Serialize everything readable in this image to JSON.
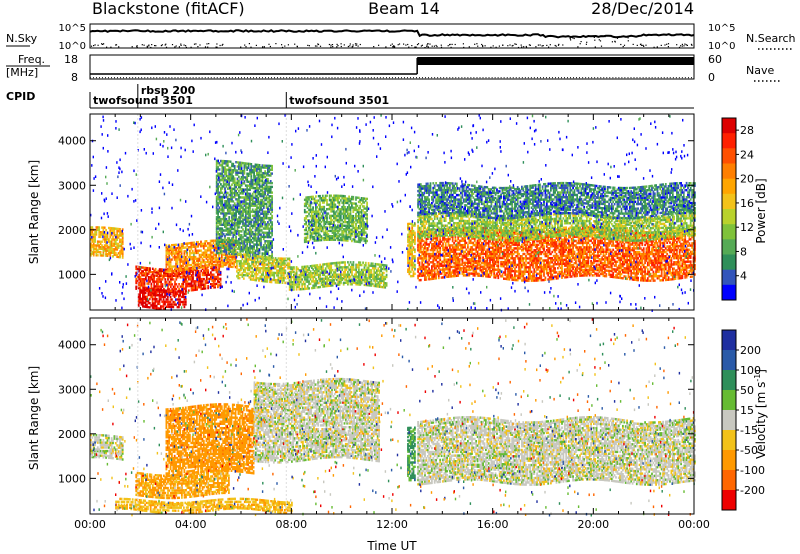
{
  "header": {
    "station": "Blackstone (fitACF)",
    "beam": "Beam 14",
    "date": "28/Dec/2014"
  },
  "summary_panels": {
    "nsky": {
      "left_label": "N.Sky",
      "right_label": "N.Search",
      "left_ticks": [
        "10^5",
        "10^0"
      ],
      "right_ticks": [
        "10^5",
        "10^0"
      ],
      "step_time_hours": 13.0
    },
    "freq": {
      "left_label_top": "Freq.",
      "left_label_bottom": "[MHz]",
      "right_label": "Nave",
      "left_ticks": [
        "18",
        "8"
      ],
      "right_ticks": [
        "60",
        "0"
      ],
      "step_time_hours": 13.0
    },
    "cpid": {
      "label": "CPID",
      "segments": [
        {
          "label": "twofsound 3501",
          "start_hour": 0.0
        },
        {
          "label": "rbsp 200",
          "start_hour": 1.9
        },
        {
          "label": "twofsound 3501",
          "start_hour": 7.8
        }
      ]
    }
  },
  "chart_data": [
    {
      "type": "heatmap",
      "title": "",
      "xlabel": "",
      "ylabel": "Slant Range [km]",
      "x_range_hours": [
        0,
        24
      ],
      "ylim": [
        200,
        4600
      ],
      "y_ticks": [
        1000,
        2000,
        3000,
        4000
      ],
      "colorbar": {
        "label": "Power [dB]",
        "ticks": [
          4,
          8,
          12,
          16,
          20,
          24,
          28
        ],
        "range": [
          0,
          30
        ],
        "colors": [
          "#0000ff",
          "#3355bb",
          "#2f8f5a",
          "#55aa55",
          "#7fc23a",
          "#b9d22c",
          "#f2c21a",
          "#ffa500",
          "#ff7f00",
          "#ff5000",
          "#ff2000",
          "#dd0000"
        ]
      },
      "echo_regions": [
        {
          "t0": 0.0,
          "t1": 1.3,
          "r_lo": 1350,
          "r_hi": 2000,
          "level": 18
        },
        {
          "t0": 1.8,
          "t1": 5.2,
          "r_lo": 650,
          "r_hi": 1150,
          "level": 26
        },
        {
          "t0": 3.0,
          "t1": 5.8,
          "r_lo": 1100,
          "r_hi": 1700,
          "level": 20
        },
        {
          "t0": 1.9,
          "t1": 3.8,
          "r_lo": 250,
          "r_hi": 700,
          "level": 29
        },
        {
          "t0": 5.0,
          "t1": 7.2,
          "r_lo": 1400,
          "r_hi": 3500,
          "level": 8
        },
        {
          "t0": 5.8,
          "t1": 7.9,
          "r_lo": 850,
          "r_hi": 1400,
          "level": 14
        },
        {
          "t0": 7.9,
          "t1": 11.8,
          "r_lo": 700,
          "r_hi": 1200,
          "level": 12
        },
        {
          "t0": 8.5,
          "t1": 11.0,
          "r_lo": 1700,
          "r_hi": 2700,
          "level": 10
        },
        {
          "t0": 12.6,
          "t1": 12.9,
          "r_lo": 1000,
          "r_hi": 2200,
          "level": 16
        },
        {
          "t0": 13.0,
          "t1": 24.0,
          "r_lo": 900,
          "r_hi": 2000,
          "level": 23
        },
        {
          "t0": 13.0,
          "t1": 24.0,
          "r_lo": 1800,
          "r_hi": 2300,
          "level": 12
        },
        {
          "t0": 13.0,
          "t1": 24.0,
          "r_lo": 2300,
          "r_hi": 3000,
          "level": 6
        }
      ]
    },
    {
      "type": "heatmap",
      "title": "",
      "xlabel": "Time UT",
      "ylabel": "Slant Range [km]",
      "x_range_hours": [
        0,
        24
      ],
      "x_tick_labels": [
        "00:00",
        "04:00",
        "08:00",
        "12:00",
        "16:00",
        "20:00",
        "00:00"
      ],
      "ylim": [
        200,
        4600
      ],
      "y_ticks": [
        1000,
        2000,
        3000,
        4000
      ],
      "colorbar": {
        "label": "Velocity [m s^-1]",
        "ticks": [
          200,
          100,
          50,
          15,
          -15,
          -50,
          -100,
          -200
        ],
        "colors": [
          "#1f2fa0",
          "#2a5aa8",
          "#2f8f5a",
          "#66bb33",
          "#c8c8c0",
          "#f2c21a",
          "#ff9900",
          "#ff6600",
          "#ee0000"
        ]
      },
      "echo_regions": [
        {
          "t0": 0.0,
          "t1": 1.3,
          "r_lo": 1400,
          "r_hi": 1900,
          "velocity": 0
        },
        {
          "t0": 1.8,
          "t1": 5.5,
          "r_lo": 600,
          "r_hi": 1100,
          "velocity": -60
        },
        {
          "t0": 3.0,
          "t1": 6.5,
          "r_lo": 1100,
          "r_hi": 2600,
          "velocity": -80
        },
        {
          "t0": 6.5,
          "t1": 11.5,
          "r_lo": 1400,
          "r_hi": 3200,
          "velocity": 0
        },
        {
          "t0": 1.0,
          "t1": 8.0,
          "r_lo": 250,
          "r_hi": 500,
          "velocity": -40
        },
        {
          "t0": 12.6,
          "t1": 12.9,
          "r_lo": 1000,
          "r_hi": 2200,
          "velocity": 60
        },
        {
          "t0": 13.0,
          "t1": 24.0,
          "r_lo": 900,
          "r_hi": 2300,
          "velocity": 0
        }
      ]
    }
  ]
}
